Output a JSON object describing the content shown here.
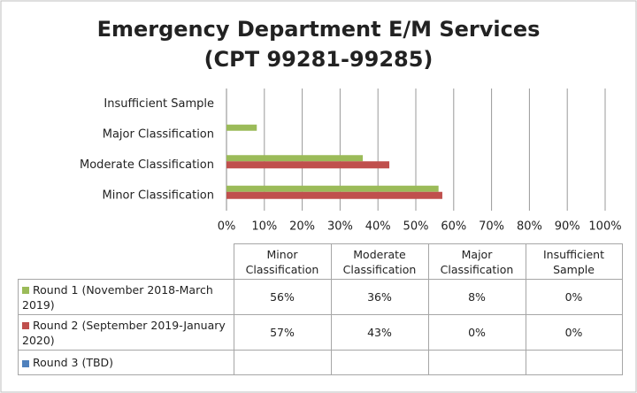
{
  "chart_data": {
    "type": "bar",
    "orientation": "horizontal",
    "title": "Emergency Department E/M Services",
    "subtitle": "(CPT 99281-99285)",
    "categories": [
      "Minor Classification",
      "Moderate Classification",
      "Major Classification",
      "Insufficient Sample"
    ],
    "series": [
      {
        "name": "Round 1 (November 2018-March 2019)",
        "color": "#9bbb59",
        "values": [
          56,
          36,
          8,
          0
        ],
        "value_labels": [
          "56%",
          "36%",
          "8%",
          "0%"
        ]
      },
      {
        "name": "Round 2 (September 2019-January 2020)",
        "color": "#c0504d",
        "values": [
          57,
          43,
          0,
          0
        ],
        "value_labels": [
          "57%",
          "43%",
          "0%",
          "0%"
        ]
      },
      {
        "name": "Round 3 (TBD)",
        "color": "#4f81bd",
        "values": [
          null,
          null,
          null,
          null
        ]
      }
    ],
    "xlim": [
      0,
      100
    ],
    "xticks": [
      {
        "value": 0,
        "label": "0%"
      },
      {
        "value": 10,
        "label": "10%"
      },
      {
        "value": 20,
        "label": "20%"
      },
      {
        "value": 30,
        "label": "30%"
      },
      {
        "value": 40,
        "label": "40%"
      },
      {
        "value": 50,
        "label": "50%"
      },
      {
        "value": 60,
        "label": "60%"
      },
      {
        "value": 70,
        "label": "70%"
      },
      {
        "value": 80,
        "label": "80%"
      },
      {
        "value": 90,
        "label": "90%"
      },
      {
        "value": 100,
        "label": "100%"
      }
    ],
    "grid": true
  }
}
